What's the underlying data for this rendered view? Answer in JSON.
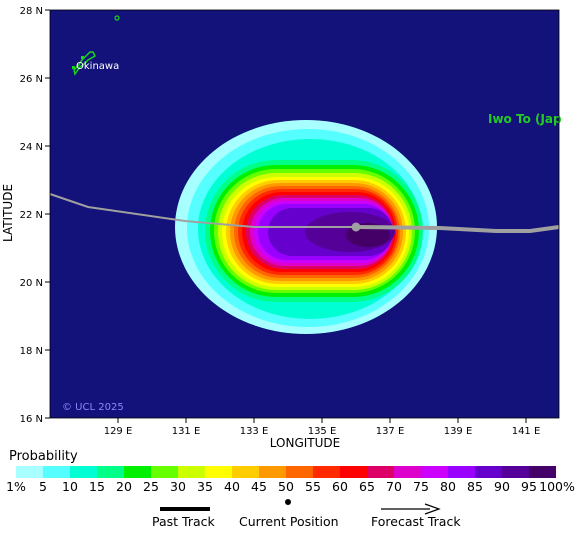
{
  "map": {
    "lat_labels": [
      "28 N",
      "26 N",
      "24 N",
      "22 N",
      "20 N",
      "18 N",
      "16 N"
    ],
    "lat_values": [
      28,
      26,
      24,
      22,
      20,
      18,
      16
    ],
    "lon_labels": [
      "129 E",
      "131 E",
      "133 E",
      "135 E",
      "137 E",
      "139 E",
      "141 E"
    ],
    "lon_values": [
      129,
      131,
      133,
      135,
      137,
      139,
      141
    ],
    "y_axis_title": "LATITUDE",
    "x_axis_title": "LONGITUDE",
    "place_okinawa": "Okinawa",
    "place_iwoto": "Iwo To (Jap",
    "copyright": "© UCL 2025",
    "background_color": "#12127a",
    "land_color": "#17d417",
    "track_color": "#a0a0a0",
    "current_position": {
      "lon": 136.1,
      "lat": 21.6
    },
    "past_track": [
      [
        127.1,
        22.6
      ],
      [
        128.1,
        22.2
      ],
      [
        131,
        21.8
      ],
      [
        134,
        21.6
      ],
      [
        136.1,
        21.6
      ]
    ],
    "forecast_track": [
      [
        136.1,
        21.6
      ],
      [
        138,
        21.6
      ],
      [
        140.2,
        21.5
      ],
      [
        141,
        21.5
      ],
      [
        141.6,
        21.6
      ]
    ]
  },
  "legend": {
    "title": "Probability",
    "colors": [
      "#a8ffff",
      "#55ffff",
      "#00ffd2",
      "#00ff88",
      "#00f000",
      "#66ff00",
      "#ccff00",
      "#ffff00",
      "#ffcc00",
      "#ff9900",
      "#ff6600",
      "#ff2a00",
      "#ff0000",
      "#dd0066",
      "#dd00cc",
      "#cc00ff",
      "#9900ff",
      "#6600cc",
      "#550099",
      "#440066"
    ],
    "labels": [
      "1%",
      "5",
      "10",
      "15",
      "20",
      "25",
      "30",
      "35",
      "40",
      "45",
      "50",
      "55",
      "60",
      "65",
      "70",
      "75",
      "80",
      "85",
      "90",
      "95",
      "100%"
    ],
    "past_track_label": "Past Track",
    "current_position_label": "Current Position",
    "forecast_track_label": "Forecast Track"
  }
}
